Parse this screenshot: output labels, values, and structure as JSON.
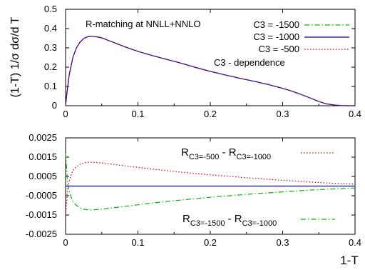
{
  "chart_data": [
    {
      "type": "line",
      "ylabel": "(1-T) 1/σ dσ/d T",
      "xlim": [
        0,
        0.4
      ],
      "ylim": [
        0,
        0.5
      ],
      "x_ticks": [
        "0",
        "0.1",
        "0.2",
        "0.3",
        "0.4"
      ],
      "y_ticks": [
        "0",
        "0.1",
        "0.2",
        "0.3",
        "0.4",
        "0.5"
      ],
      "annotations": {
        "title": "R-matching at NNLL+NNLO",
        "note": "C3 - dependence"
      },
      "legend_position": "top-right",
      "series": [
        {
          "name": "C3 = -1500",
          "color": "#00bb00",
          "dash": "dashdot",
          "x": [
            0.0,
            0.002,
            0.005,
            0.01,
            0.015,
            0.02,
            0.025,
            0.03,
            0.035,
            0.04,
            0.045,
            0.05,
            0.055,
            0.06,
            0.07,
            0.08,
            0.09,
            0.1,
            0.12,
            0.14,
            0.16,
            0.18,
            0.2,
            0.22,
            0.24,
            0.26,
            0.28,
            0.3,
            0.31,
            0.32,
            0.33,
            0.34,
            0.35,
            0.36,
            0.37,
            0.38,
            0.39,
            0.4
          ],
          "y": [
            0.0,
            0.07,
            0.16,
            0.25,
            0.3,
            0.33,
            0.348,
            0.357,
            0.36,
            0.358,
            0.356,
            0.352,
            0.345,
            0.337,
            0.323,
            0.308,
            0.295,
            0.282,
            0.26,
            0.24,
            0.22,
            0.198,
            0.178,
            0.16,
            0.143,
            0.127,
            0.11,
            0.09,
            0.079,
            0.066,
            0.052,
            0.037,
            0.022,
            0.01,
            0.004,
            0.001,
            0.0,
            0.0
          ]
        },
        {
          "name": "C3 = -1000",
          "color": "#0000cc",
          "dash": "solid",
          "x": [
            0.0,
            0.002,
            0.005,
            0.01,
            0.015,
            0.02,
            0.025,
            0.03,
            0.035,
            0.04,
            0.045,
            0.05,
            0.055,
            0.06,
            0.07,
            0.08,
            0.09,
            0.1,
            0.12,
            0.14,
            0.16,
            0.18,
            0.2,
            0.22,
            0.24,
            0.26,
            0.28,
            0.3,
            0.31,
            0.32,
            0.33,
            0.34,
            0.35,
            0.36,
            0.37,
            0.38,
            0.39,
            0.4
          ],
          "y": [
            0.0,
            0.07,
            0.16,
            0.25,
            0.3,
            0.33,
            0.348,
            0.357,
            0.36,
            0.358,
            0.356,
            0.352,
            0.345,
            0.337,
            0.323,
            0.308,
            0.295,
            0.282,
            0.26,
            0.24,
            0.22,
            0.198,
            0.178,
            0.16,
            0.143,
            0.127,
            0.11,
            0.09,
            0.079,
            0.066,
            0.052,
            0.037,
            0.022,
            0.01,
            0.004,
            0.001,
            0.0,
            0.0
          ]
        },
        {
          "name": "C3 = -500",
          "color": "#dd0000",
          "dash": "dotted",
          "x": [
            0.0,
            0.002,
            0.005,
            0.01,
            0.015,
            0.02,
            0.025,
            0.03,
            0.035,
            0.04,
            0.045,
            0.05,
            0.055,
            0.06,
            0.07,
            0.08,
            0.09,
            0.1,
            0.12,
            0.14,
            0.16,
            0.18,
            0.2,
            0.22,
            0.24,
            0.26,
            0.28,
            0.3,
            0.31,
            0.32,
            0.33,
            0.34,
            0.35,
            0.36,
            0.37,
            0.38,
            0.39,
            0.4
          ],
          "y": [
            0.0,
            0.07,
            0.16,
            0.25,
            0.3,
            0.33,
            0.348,
            0.357,
            0.36,
            0.358,
            0.356,
            0.352,
            0.345,
            0.337,
            0.323,
            0.308,
            0.295,
            0.282,
            0.26,
            0.24,
            0.22,
            0.198,
            0.178,
            0.16,
            0.143,
            0.127,
            0.11,
            0.09,
            0.079,
            0.066,
            0.052,
            0.037,
            0.022,
            0.01,
            0.004,
            0.001,
            0.0,
            0.0
          ]
        }
      ]
    },
    {
      "type": "line",
      "xlabel": "1-T",
      "xlim": [
        0,
        0.4
      ],
      "ylim": [
        -0.0025,
        0.0025
      ],
      "x_ticks": [
        "0",
        "0.1",
        "0.2",
        "0.3",
        "0.4"
      ],
      "y_ticks": [
        "0.0025",
        "0.0015",
        "0.0005",
        "-0.0005",
        "-0.0015",
        "-0.0025"
      ],
      "y_tick_values": [
        0.0025,
        0.0015,
        0.0005,
        -0.0005,
        -0.0015,
        -0.0025
      ],
      "series": [
        {
          "label_main": "R",
          "label_sub": "C3=-500",
          "label_mid": " - R",
          "label_sub2": "C3=-1000",
          "color": "#dd0000",
          "dash": "dotted",
          "x": [
            0.0,
            0.003,
            0.006,
            0.01,
            0.015,
            0.02,
            0.025,
            0.03,
            0.035,
            0.04,
            0.05,
            0.06,
            0.08,
            0.1,
            0.12,
            0.15,
            0.18,
            0.2,
            0.25,
            0.3,
            0.35,
            0.4
          ],
          "y": [
            -0.0015,
            -0.0001,
            0.0004,
            0.0008,
            0.001,
            0.00113,
            0.0012,
            0.00123,
            0.00124,
            0.00123,
            0.0012,
            0.00115,
            0.00106,
            0.00097,
            0.00088,
            0.00076,
            0.00065,
            0.00058,
            0.00043,
            0.0003,
            0.00018,
            0.0001
          ]
        },
        {
          "label_main": "R",
          "label_sub": "C3=-1500",
          "label_mid": " - R",
          "label_sub2": "C3=-1000",
          "color": "#00bb00",
          "dash": "dashdot",
          "x": [
            0.0,
            0.003,
            0.006,
            0.01,
            0.015,
            0.02,
            0.025,
            0.03,
            0.035,
            0.04,
            0.05,
            0.06,
            0.08,
            0.1,
            0.12,
            0.15,
            0.18,
            0.2,
            0.25,
            0.3,
            0.35,
            0.4
          ],
          "y": [
            0.0017,
            0.0001,
            -0.0004,
            -0.0008,
            -0.001,
            -0.00113,
            -0.0012,
            -0.00123,
            -0.00124,
            -0.00123,
            -0.0012,
            -0.00115,
            -0.00106,
            -0.00097,
            -0.00088,
            -0.00076,
            -0.00065,
            -0.00058,
            -0.00043,
            -0.0003,
            -0.00018,
            -0.0001
          ]
        },
        {
          "name": "",
          "color": "#0000cc",
          "dash": "solid",
          "x": [
            0.0,
            0.4
          ],
          "y": [
            0.0,
            0.0
          ]
        }
      ]
    }
  ]
}
